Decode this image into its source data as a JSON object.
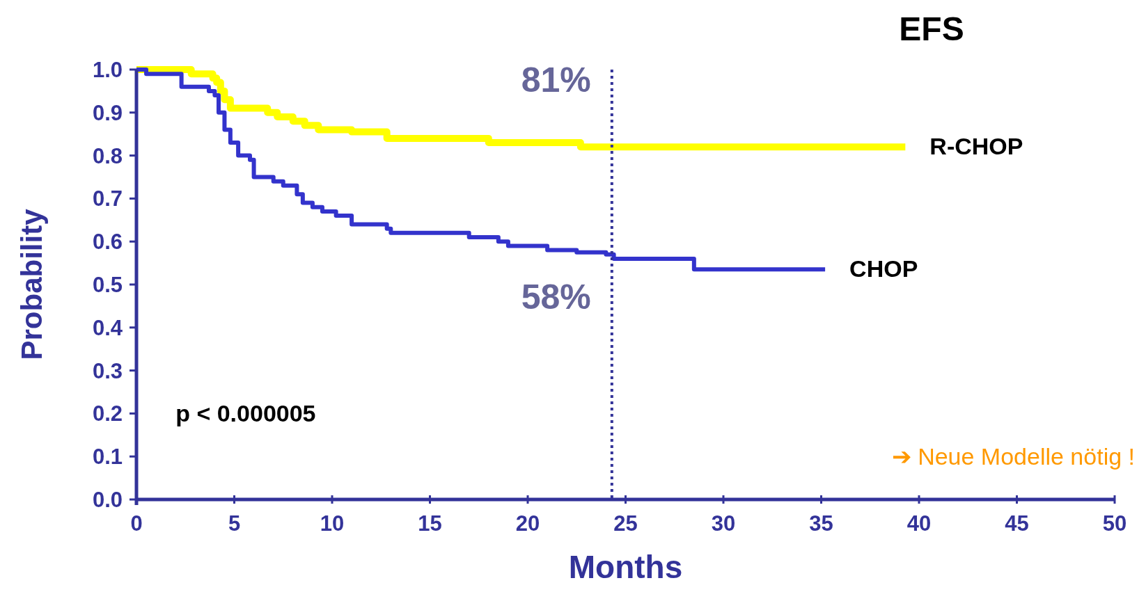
{
  "chart_data": {
    "type": "step",
    "title": "EFS",
    "xlabel": "Months",
    "ylabel": "Probability",
    "xlim": [
      0,
      50
    ],
    "xticks": [
      0,
      5,
      10,
      15,
      20,
      25,
      30,
      35,
      40,
      45,
      50
    ],
    "ylim": [
      0,
      1
    ],
    "yticks": [
      {
        "value": 0,
        "label": "0.0"
      },
      0.1,
      0.2,
      0.3,
      0.4,
      0.5,
      0.6,
      0.7,
      0.8,
      0.9,
      {
        "value": 1,
        "label": "1.0"
      }
    ],
    "grid": false,
    "series": [
      {
        "name": "R-CHOP",
        "color": "#ffff00",
        "x": [
          0,
          2.8,
          3.9,
          4.1,
          4.3,
          4.5,
          4.8,
          5.2,
          6.7,
          7.2,
          8.0,
          8.6,
          9.3,
          11.0,
          12.8,
          18.0,
          22.7,
          39.3
        ],
        "values": [
          1.0,
          0.99,
          0.98,
          0.97,
          0.95,
          0.93,
          0.91,
          0.91,
          0.9,
          0.89,
          0.88,
          0.87,
          0.86,
          0.855,
          0.84,
          0.83,
          0.82,
          0.82
        ]
      },
      {
        "name": "CHOP",
        "color": "#3333cc",
        "x": [
          0,
          0.5,
          2.3,
          3.7,
          4.0,
          4.2,
          4.5,
          4.8,
          5.2,
          5.8,
          6.0,
          7.0,
          7.5,
          8.2,
          8.5,
          9.0,
          9.5,
          10.2,
          11.0,
          12.8,
          13.0,
          17.0,
          18.5,
          19.0,
          21.0,
          22.5,
          24.0,
          24.4,
          28.5,
          35.2
        ],
        "values": [
          1.0,
          0.99,
          0.96,
          0.95,
          0.94,
          0.9,
          0.86,
          0.83,
          0.8,
          0.79,
          0.75,
          0.74,
          0.73,
          0.71,
          0.69,
          0.68,
          0.67,
          0.66,
          0.64,
          0.63,
          0.62,
          0.61,
          0.6,
          0.59,
          0.58,
          0.575,
          0.57,
          0.56,
          0.535,
          0.535
        ]
      }
    ],
    "ref_lines": [
      {
        "axis": "x",
        "value": 24.3,
        "color": "#333399",
        "line_style": "dotted"
      }
    ],
    "annotations": [
      "81%",
      "58%",
      "p < 0.000005",
      "➔ Neue Modelle nötig !"
    ]
  }
}
